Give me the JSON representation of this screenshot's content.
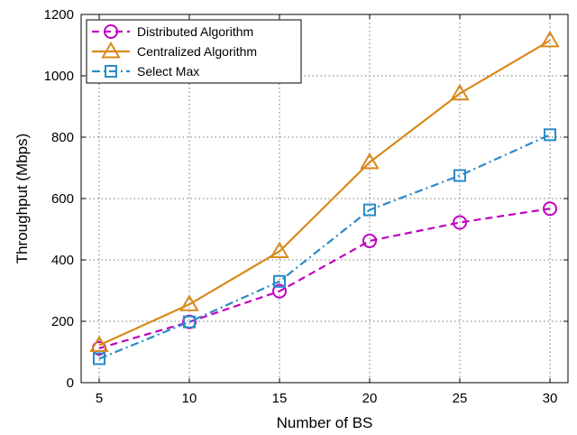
{
  "chart_data": {
    "type": "line",
    "title": "",
    "xlabel": "Number of BS",
    "ylabel": "Throughput (Mbps)",
    "x": [
      5,
      10,
      15,
      20,
      25,
      30
    ],
    "xlim": [
      4,
      31
    ],
    "ylim": [
      0,
      1200
    ],
    "xticks": [
      "5",
      "10",
      "15",
      "20",
      "25",
      "30"
    ],
    "yticks": [
      "0",
      "200",
      "400",
      "600",
      "800",
      "1000",
      "1200"
    ],
    "grid": true,
    "legend_position": "top-left",
    "series": [
      {
        "name": "Distributed Algorithm",
        "values": [
          112,
          198,
          298,
          462,
          522,
          567
        ],
        "color": "#c000c0",
        "line_style": "dashed",
        "marker": "circle"
      },
      {
        "name": "Centralized Algorithm",
        "values": [
          122,
          255,
          428,
          718,
          942,
          1115
        ],
        "color": "#d98a1b",
        "line_style": "solid",
        "marker": "triangle"
      },
      {
        "name": "Select Max",
        "values": [
          78,
          198,
          330,
          563,
          675,
          808
        ],
        "color": "#2a8bc9",
        "line_style": "dashdot",
        "marker": "square"
      }
    ]
  }
}
